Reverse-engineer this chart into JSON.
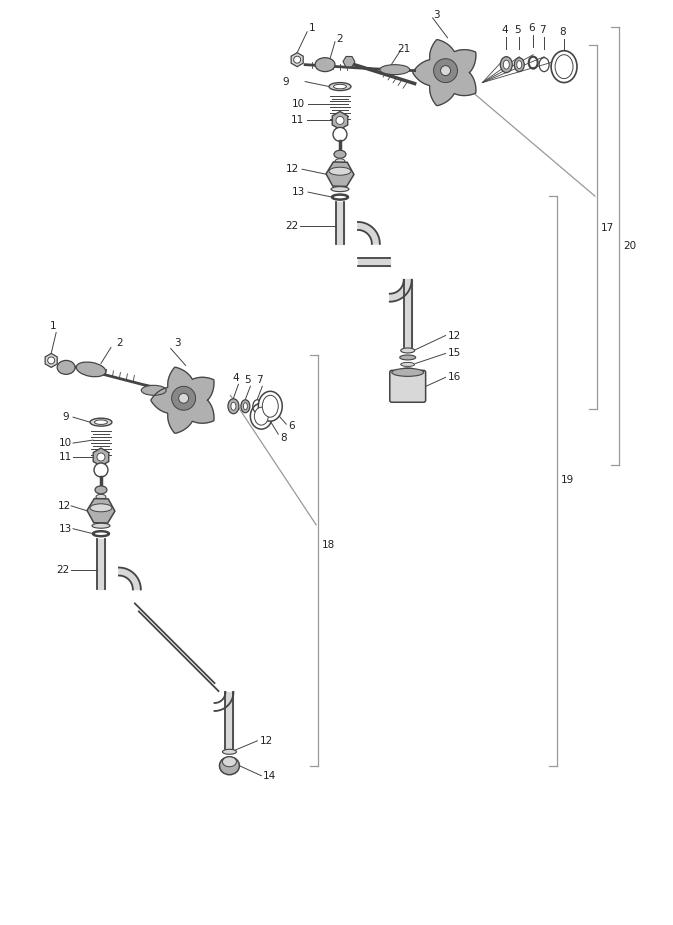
{
  "bg_color": "#ffffff",
  "lc": "#444444",
  "pc": "#b0b0b0",
  "dc": "#888888",
  "wc": "#d8d8d8",
  "bc": "#999999",
  "label_fs": 7.5
}
